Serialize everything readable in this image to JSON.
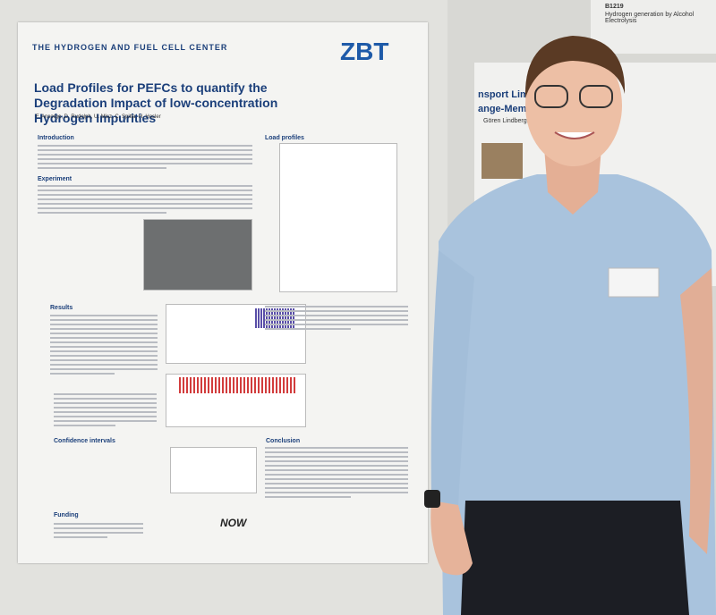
{
  "poster": {
    "org": "THE HYDROGEN AND FUEL CELL CENTER",
    "logo": "ZBT",
    "title": "Load Profiles for PEFCs to quantify the Degradation Impact of low-concentration Hydrogen Impurities",
    "authors": "F. Ansorge, D. Rudolph, U. Misz, C. Spitta, H. Hosler",
    "sections": [
      "Introduction",
      "Experiment",
      "Load profiles",
      "Results",
      "Confidence intervals",
      "Conclusion",
      "Funding"
    ],
    "footer_logo": "NOW"
  },
  "neighbor_poster": {
    "id": "B1219",
    "title": "Hydrogen generation by Alcohol Electrolysis",
    "heading_fragments": [
      "nsport Limitati",
      "ange-Membran"
    ],
    "author": "Gören Lindbergh"
  }
}
